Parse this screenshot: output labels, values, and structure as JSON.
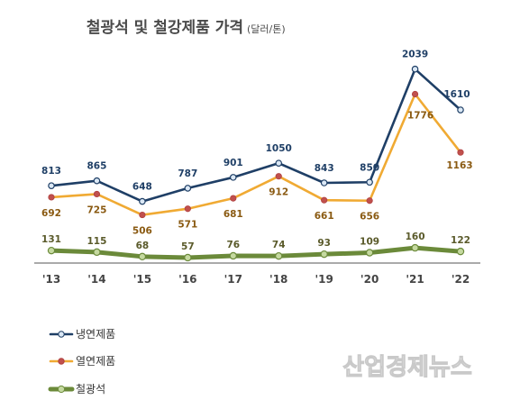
{
  "chart_data": {
    "type": "line",
    "title": "철광석 및 철강제품 가격",
    "unit": "(달러/톤)",
    "categories": [
      "'13",
      "'14",
      "'15",
      "'16",
      "'17",
      "'18",
      "'19",
      "'20",
      "'21",
      "'22"
    ],
    "ylim": [
      0,
      2150
    ],
    "grid": false,
    "legend_position": "bottom-left",
    "series": [
      {
        "name": "냉연제품",
        "color": "#1f3f66",
        "marker_fill": "#dbe8f5",
        "label_color": "#1f3f66",
        "values": [
          813,
          865,
          648,
          787,
          901,
          1050,
          843,
          850,
          2039,
          1610
        ]
      },
      {
        "name": "열연제품",
        "color": "#f0aa33",
        "marker_fill": "#c0504d",
        "label_color": "#8a5a12",
        "values": [
          692,
          725,
          506,
          571,
          681,
          912,
          661,
          656,
          1776,
          1163
        ]
      },
      {
        "name": "철광석",
        "color": "#6b8a3a",
        "marker_fill": "#c5d9a0",
        "label_color": "#5a5a2a",
        "values": [
          131,
          115,
          68,
          57,
          76,
          74,
          93,
          109,
          160,
          122
        ]
      }
    ]
  },
  "watermark": "산업경제뉴스"
}
